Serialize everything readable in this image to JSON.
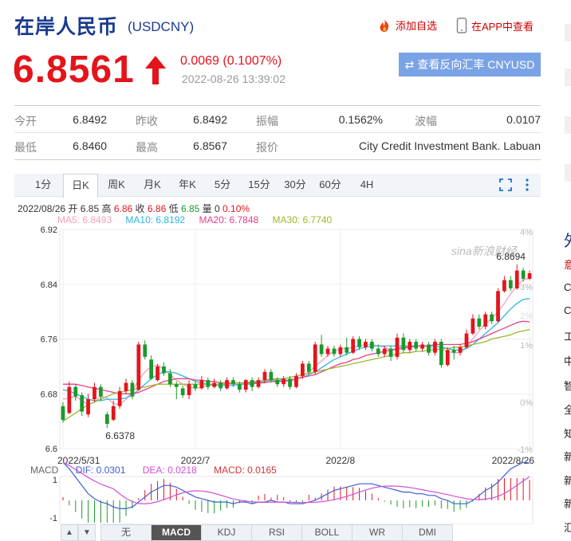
{
  "header": {
    "title": "在岸人民币",
    "code": "(USDCNY)",
    "add_watch": "添加自选",
    "app_view": "在APP中查看"
  },
  "quote": {
    "price": "6.8561",
    "change": "0.0069 (0.1007%)",
    "time": "2022-08-26 13:39:02",
    "reverse_button": "查看反向汇率 CNYUSD"
  },
  "stats": [
    {
      "label": "今开",
      "value": "6.8492"
    },
    {
      "label": "昨收",
      "value": "6.8492"
    },
    {
      "label": "振幅",
      "value": "0.1562%"
    },
    {
      "label": "波幅",
      "value": "0.0107"
    },
    {
      "label": "最低",
      "value": "6.8460"
    },
    {
      "label": "最高",
      "value": "6.8567"
    },
    {
      "label": "报价",
      "value": "City Credit Investment Bank. Labuan"
    }
  ],
  "tabs": [
    "1分",
    "日K",
    "周K",
    "月K",
    "年K",
    "5分",
    "15分",
    "30分",
    "60分",
    "4H"
  ],
  "active_tab": "日K",
  "ohlc": {
    "date": "2022/08/26",
    "open_label": "开",
    "open": "6.85",
    "high_label": "高",
    "high": "6.86",
    "close_label": "收",
    "close": "6.86",
    "low_label": "低",
    "low": "6.85",
    "vol_label": "量",
    "vol": "0",
    "pct": "0.10%"
  },
  "ma": [
    {
      "text": "MA5: 6.8493",
      "color": "#f4a0c0"
    },
    {
      "text": "MA10: 6.8192",
      "color": "#2bb5e8"
    },
    {
      "text": "MA20: 6.7848",
      "color": "#e8408a"
    },
    {
      "text": "MA30: 6.7740",
      "color": "#9ab82a"
    }
  ],
  "macd_indicators": [
    {
      "text": "MACD",
      "color": "#666"
    },
    {
      "text": "DIF: 0.0301",
      "color": "#3d5fd6"
    },
    {
      "text": "DEA: 0.0218",
      "color": "#d64cd6"
    },
    {
      "text": "MACD: 0.0165",
      "color": "#d0343a"
    }
  ],
  "macd_scale": [
    "1",
    "-1"
  ],
  "bottom_tabs": [
    "无",
    "MACD",
    "KDJ",
    "RSI",
    "BOLL",
    "WR",
    "DMI"
  ],
  "active_bottom_tab": "MACD",
  "watermark": "sina新浪财经",
  "chart_data": {
    "type": "candlestick",
    "x_ticks": [
      "2022/5/31",
      "2022/7",
      "2022/8",
      "2022/8/26"
    ],
    "y_ticks": [
      "6.92",
      "6.84",
      "6.76",
      "6.68",
      "6.6"
    ],
    "y_range": [
      6.6,
      6.92
    ],
    "pct_ticks": [
      "4%",
      "3%",
      "2%",
      "1%",
      "0%",
      "-1%"
    ],
    "max_label": "6.8694",
    "min_label": "6.6378",
    "candles": [
      [
        6.662,
        6.642,
        6.668,
        6.638
      ],
      [
        6.652,
        6.69,
        6.698,
        6.65
      ],
      [
        6.69,
        6.676,
        6.694,
        6.67
      ],
      [
        6.678,
        6.654,
        6.682,
        6.648
      ],
      [
        6.65,
        6.672,
        6.68,
        6.646
      ],
      [
        6.672,
        6.69,
        6.696,
        6.668
      ],
      [
        6.69,
        6.676,
        6.694,
        6.67
      ],
      [
        6.65,
        6.636,
        6.654,
        6.63
      ],
      [
        6.642,
        6.662,
        6.67,
        6.64
      ],
      [
        6.662,
        6.684,
        6.69,
        6.658
      ],
      [
        6.684,
        6.696,
        6.702,
        6.68
      ],
      [
        6.696,
        6.676,
        6.7,
        6.672
      ],
      [
        6.686,
        6.752,
        6.756,
        6.684
      ],
      [
        6.752,
        6.734,
        6.758,
        6.73
      ],
      [
        6.73,
        6.702,
        6.736,
        6.7
      ],
      [
        6.7,
        6.72,
        6.724,
        6.698
      ],
      [
        6.72,
        6.71,
        6.726,
        6.706
      ],
      [
        6.71,
        6.694,
        6.716,
        6.69
      ],
      [
        6.694,
        6.69,
        6.698,
        6.672
      ],
      [
        6.688,
        6.678,
        6.692,
        6.674
      ],
      [
        6.678,
        6.694,
        6.7,
        6.672
      ],
      [
        6.694,
        6.688,
        6.698,
        6.684
      ],
      [
        6.688,
        6.7,
        6.706,
        6.686
      ],
      [
        6.7,
        6.69,
        6.704,
        6.686
      ],
      [
        6.69,
        6.696,
        6.702,
        6.688
      ],
      [
        6.696,
        6.688,
        6.7,
        6.684
      ],
      [
        6.688,
        6.7,
        6.704,
        6.686
      ],
      [
        6.7,
        6.694,
        6.704,
        6.69
      ],
      [
        6.694,
        6.686,
        6.698,
        6.682
      ],
      [
        6.686,
        6.7,
        6.702,
        6.682
      ],
      [
        6.7,
        6.69,
        6.704,
        6.684
      ],
      [
        6.69,
        6.7,
        6.704,
        6.688
      ],
      [
        6.7,
        6.712,
        6.716,
        6.696
      ],
      [
        6.712,
        6.7,
        6.716,
        6.696
      ],
      [
        6.7,
        6.694,
        6.704,
        6.69
      ],
      [
        6.694,
        6.702,
        6.706,
        6.69
      ],
      [
        6.702,
        6.69,
        6.706,
        6.686
      ],
      [
        6.69,
        6.706,
        6.71,
        6.688
      ],
      [
        6.706,
        6.724,
        6.728,
        6.702
      ],
      [
        6.724,
        6.712,
        6.728,
        6.708
      ],
      [
        6.712,
        6.752,
        6.756,
        6.708
      ],
      [
        6.752,
        6.738,
        6.766,
        6.734
      ],
      [
        6.738,
        6.746,
        6.75,
        6.734
      ],
      [
        6.746,
        6.738,
        6.75,
        6.734
      ],
      [
        6.738,
        6.748,
        6.752,
        6.734
      ],
      [
        6.748,
        6.74,
        6.762,
        6.736
      ],
      [
        6.74,
        6.76,
        6.764,
        6.738
      ],
      [
        6.76,
        6.748,
        6.764,
        6.744
      ],
      [
        6.748,
        6.756,
        6.76,
        6.744
      ],
      [
        6.756,
        6.746,
        6.76,
        6.742
      ],
      [
        6.746,
        6.738,
        6.752,
        6.734
      ],
      [
        6.738,
        6.746,
        6.75,
        6.734
      ],
      [
        6.746,
        6.734,
        6.75,
        6.728
      ],
      [
        6.734,
        6.762,
        6.768,
        6.73
      ],
      [
        6.762,
        6.744,
        6.768,
        6.74
      ],
      [
        6.744,
        6.756,
        6.76,
        6.74
      ],
      [
        6.756,
        6.746,
        6.76,
        6.742
      ],
      [
        6.746,
        6.752,
        6.756,
        6.742
      ],
      [
        6.752,
        6.74,
        6.756,
        6.736
      ],
      [
        6.74,
        6.756,
        6.76,
        6.736
      ],
      [
        6.756,
        6.722,
        6.76,
        6.718
      ],
      [
        6.722,
        6.744,
        6.748,
        6.72
      ],
      [
        6.744,
        6.74,
        6.75,
        6.73
      ],
      [
        6.74,
        6.748,
        6.752,
        6.736
      ],
      [
        6.748,
        6.768,
        6.774,
        6.746
      ],
      [
        6.768,
        6.79,
        6.796,
        6.766
      ],
      [
        6.79,
        6.778,
        6.796,
        6.774
      ],
      [
        6.778,
        6.796,
        6.8,
        6.774
      ],
      [
        6.796,
        6.786,
        6.8,
        6.782
      ],
      [
        6.786,
        6.83,
        6.834,
        6.784
      ],
      [
        6.83,
        6.846,
        6.852,
        6.828
      ],
      [
        6.846,
        6.834,
        6.852,
        6.83
      ],
      [
        6.834,
        6.86,
        6.869,
        6.832
      ],
      [
        6.86,
        6.848,
        6.864,
        6.844
      ],
      [
        6.848,
        6.856,
        6.86,
        6.846
      ]
    ],
    "ma_series": [
      {
        "name": "MA5",
        "color": "#f4a0c0",
        "values": [
          6.672,
          6.674,
          6.676,
          6.67,
          6.664,
          6.668,
          6.676,
          6.674,
          6.666,
          6.664,
          6.672,
          6.684,
          6.7,
          6.712,
          6.72,
          6.722,
          6.716,
          6.708,
          6.7,
          6.694,
          6.69,
          6.688,
          6.69,
          6.692,
          6.694,
          6.694,
          6.694,
          6.694,
          6.694,
          6.694,
          6.696,
          6.698,
          6.7,
          6.702,
          6.702,
          6.7,
          6.698,
          6.7,
          6.706,
          6.712,
          6.72,
          6.728,
          6.736,
          6.742,
          6.746,
          6.746,
          6.748,
          6.75,
          6.752,
          6.752,
          6.75,
          6.748,
          6.744,
          6.744,
          6.746,
          6.748,
          6.75,
          6.75,
          6.748,
          6.746,
          6.744,
          6.742,
          6.74,
          6.74,
          6.748,
          6.76,
          6.772,
          6.782,
          6.79,
          6.8,
          6.812,
          6.826,
          6.838,
          6.846,
          6.849
        ]
      },
      {
        "name": "MA10",
        "color": "#2bb5e8",
        "values": [
          6.686,
          6.684,
          6.68,
          6.676,
          6.672,
          6.67,
          6.67,
          6.672,
          6.672,
          6.672,
          6.674,
          6.678,
          6.686,
          6.694,
          6.702,
          6.708,
          6.712,
          6.712,
          6.71,
          6.706,
          6.702,
          6.698,
          6.696,
          6.694,
          6.692,
          6.692,
          6.692,
          6.692,
          6.694,
          6.694,
          6.694,
          6.696,
          6.698,
          6.7,
          6.7,
          6.7,
          6.7,
          6.702,
          6.704,
          6.708,
          6.712,
          6.718,
          6.724,
          6.73,
          6.734,
          6.738,
          6.742,
          6.746,
          6.748,
          6.75,
          6.75,
          6.75,
          6.75,
          6.75,
          6.75,
          6.75,
          6.75,
          6.75,
          6.75,
          6.75,
          6.748,
          6.746,
          6.744,
          6.744,
          6.746,
          6.752,
          6.76,
          6.768,
          6.776,
          6.784,
          6.794,
          6.804,
          6.812,
          6.818,
          6.819
        ]
      },
      {
        "name": "MA20",
        "color": "#e8408a",
        "values": [
          6.694,
          6.694,
          6.694,
          6.692,
          6.69,
          6.688,
          6.686,
          6.684,
          6.682,
          6.68,
          6.68,
          6.68,
          6.682,
          6.686,
          6.69,
          6.694,
          6.698,
          6.7,
          6.702,
          6.702,
          6.702,
          6.7,
          6.7,
          6.698,
          6.698,
          6.696,
          6.696,
          6.696,
          6.696,
          6.696,
          6.696,
          6.696,
          6.696,
          6.698,
          6.698,
          6.698,
          6.7,
          6.702,
          6.704,
          6.706,
          6.708,
          6.712,
          6.716,
          6.72,
          6.724,
          6.726,
          6.73,
          6.732,
          6.736,
          6.738,
          6.74,
          6.742,
          6.744,
          6.746,
          6.748,
          6.748,
          6.75,
          6.75,
          6.75,
          6.752,
          6.752,
          6.752,
          6.752,
          6.752,
          6.754,
          6.756,
          6.76,
          6.764,
          6.768,
          6.772,
          6.776,
          6.78,
          6.784,
          6.786,
          6.785
        ]
      },
      {
        "name": "MA30",
        "color": "#9ab82a",
        "values": [
          6.64,
          6.646,
          6.652,
          6.658,
          6.664,
          6.668,
          6.672,
          6.676,
          6.68,
          6.682,
          6.684,
          6.686,
          6.688,
          6.69,
          6.692,
          6.694,
          6.694,
          6.694,
          6.694,
          6.694,
          6.694,
          6.694,
          6.694,
          6.694,
          6.694,
          6.694,
          6.694,
          6.696,
          6.696,
          6.696,
          6.698,
          6.698,
          6.7,
          6.7,
          6.702,
          6.702,
          6.704,
          6.706,
          6.708,
          6.71,
          6.712,
          6.714,
          6.716,
          6.718,
          6.72,
          6.722,
          6.724,
          6.726,
          6.728,
          6.73,
          6.732,
          6.734,
          6.736,
          6.738,
          6.74,
          6.74,
          6.742,
          6.742,
          6.744,
          6.744,
          6.746,
          6.746,
          6.748,
          6.748,
          6.75,
          6.752,
          6.754,
          6.756,
          6.76,
          6.762,
          6.764,
          6.766,
          6.77,
          6.772,
          6.774
        ]
      }
    ]
  },
  "sidebar_right": [
    "外",
    "意",
    "C",
    "C",
    "工",
    "中",
    "智",
    "全",
    "知",
    "新",
    "新",
    "新",
    "汇"
  ]
}
